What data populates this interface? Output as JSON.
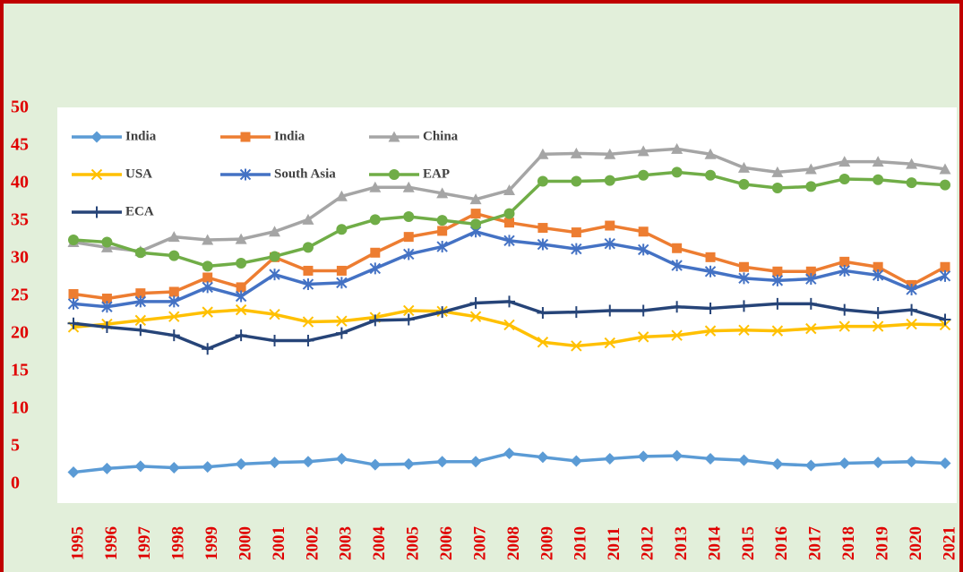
{
  "chart_data": {
    "type": "line",
    "x": [
      "1995",
      "1996",
      "1997",
      "1998",
      "1999",
      "2000",
      "2001",
      "2002",
      "2003",
      "2004",
      "2005",
      "2006",
      "2007",
      "2008",
      "2009",
      "2010",
      "2011",
      "2012",
      "2013",
      "2014",
      "2015",
      "2016",
      "2017",
      "2018",
      "2019",
      "2020",
      "2021"
    ],
    "ylim": [
      0,
      50
    ],
    "yticks": [
      0,
      5,
      10,
      15,
      20,
      25,
      30,
      35,
      40,
      45,
      50
    ],
    "legend": "top-left",
    "series": [
      {
        "name": "India",
        "color": "#5b9bd5",
        "marker": "diamond",
        "values": [
          1.6,
          2.1,
          2.4,
          2.2,
          2.3,
          2.7,
          2.9,
          3.0,
          3.4,
          2.6,
          2.7,
          3.0,
          3.0,
          4.1,
          3.6,
          3.1,
          3.4,
          3.7,
          3.8,
          3.4,
          3.2,
          2.7,
          2.5,
          2.8,
          2.9,
          3.0,
          2.8
        ]
      },
      {
        "name": "India",
        "color": "#ed7d31",
        "marker": "square",
        "values": [
          25.3,
          24.7,
          25.4,
          25.6,
          27.5,
          26.2,
          30.2,
          28.4,
          28.4,
          30.8,
          32.9,
          33.7,
          36.0,
          34.8,
          34.1,
          33.5,
          34.4,
          33.6,
          31.4,
          30.2,
          28.9,
          28.3,
          28.3,
          29.6,
          28.9,
          26.5,
          28.9
        ]
      },
      {
        "name": "China",
        "color": "#a5a5a5",
        "marker": "triangle",
        "values": [
          32.2,
          31.5,
          31.0,
          32.9,
          32.5,
          32.6,
          33.6,
          35.2,
          38.3,
          39.5,
          39.5,
          38.7,
          37.9,
          39.1,
          43.9,
          44.0,
          43.9,
          44.3,
          44.6,
          43.9,
          42.1,
          41.5,
          41.9,
          42.9,
          42.9,
          42.6,
          41.9
        ]
      },
      {
        "name": "USA",
        "color": "#ffc000",
        "marker": "x",
        "values": [
          20.9,
          21.3,
          21.8,
          22.3,
          22.9,
          23.2,
          22.6,
          21.6,
          21.7,
          22.2,
          23.1,
          23.0,
          22.3,
          21.2,
          18.9,
          18.4,
          18.8,
          19.6,
          19.8,
          20.4,
          20.5,
          20.4,
          20.7,
          21.0,
          21.0,
          21.3,
          21.2
        ]
      },
      {
        "name": "South Asia",
        "color": "#4472c4",
        "marker": "asterisk",
        "values": [
          24.0,
          23.6,
          24.3,
          24.3,
          26.2,
          25.0,
          27.9,
          26.6,
          26.8,
          28.7,
          30.6,
          31.6,
          33.6,
          32.4,
          31.9,
          31.3,
          32.0,
          31.2,
          29.1,
          28.3,
          27.4,
          27.1,
          27.3,
          28.4,
          27.8,
          25.9,
          27.7
        ]
      },
      {
        "name": "EAP",
        "color": "#70ad47",
        "marker": "circle",
        "values": [
          32.5,
          32.2,
          30.8,
          30.4,
          29.0,
          29.4,
          30.3,
          31.5,
          33.9,
          35.2,
          35.6,
          35.1,
          34.6,
          36.0,
          40.3,
          40.3,
          40.4,
          41.1,
          41.5,
          41.1,
          39.9,
          39.4,
          39.6,
          40.6,
          40.5,
          40.1,
          39.8
        ]
      },
      {
        "name": "ECA",
        "color": "#264478",
        "marker": "plus",
        "values": [
          21.4,
          20.9,
          20.5,
          19.8,
          18.0,
          19.8,
          19.1,
          19.1,
          20.1,
          21.8,
          21.9,
          22.9,
          24.1,
          24.3,
          22.8,
          22.9,
          23.1,
          23.1,
          23.6,
          23.4,
          23.7,
          24.0,
          24.0,
          23.2,
          22.8,
          23.2,
          21.9
        ]
      }
    ]
  }
}
